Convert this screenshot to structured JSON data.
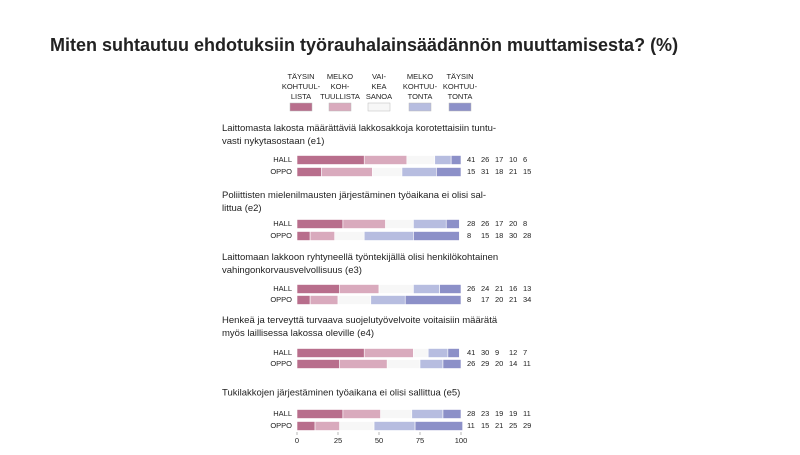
{
  "chart_data": {
    "type": "stacked_bar",
    "title": "Miten suhtautuu ehdotuksiin työrauhalainsäädännön muuttamisesta? (%)",
    "series": [
      {
        "name": "TÄYSIN\nKOHTUUL-\nLISTA",
        "color": "#b86e8c"
      },
      {
        "name": "MELKO\nKOH-\nTUULLISTA",
        "color": "#d9aabd"
      },
      {
        "name": "VAI-\nKEA\nSANOA",
        "color": "#f7f7f7"
      },
      {
        "name": "MELKO\nKOHTUU-\nTONTA",
        "color": "#b7bde0"
      },
      {
        "name": "TÄYSIN\nKOHTUU-\nTONTA",
        "color": "#8c90c8"
      }
    ],
    "groups": [
      {
        "label": "Laittomasta lakosta määrättäviä lakkosakkoja korotettaisiin tuntu-\nvasti nykytasostaan (e1)",
        "rows": [
          {
            "name": "HALL",
            "values": [
              41,
              26,
              17,
              10,
              6
            ]
          },
          {
            "name": "OPPO",
            "values": [
              15,
              31,
              18,
              21,
              15
            ]
          }
        ]
      },
      {
        "label": "Poliittisten mielenilmausten järjestäminen työaikana ei olisi sal-\nlittua (e2)",
        "rows": [
          {
            "name": "HALL",
            "values": [
              28,
              26,
              17,
              20,
              8
            ]
          },
          {
            "name": "OPPO",
            "values": [
              8,
              15,
              18,
              30,
              28
            ]
          }
        ]
      },
      {
        "label": "Laittomaan lakkoon ryhtyneellä työntekijällä olisi henkilökohtainen\nvahingonkorvausvelvollisuus (e3)",
        "rows": [
          {
            "name": "HALL",
            "values": [
              26,
              24,
              21,
              16,
              13
            ]
          },
          {
            "name": "OPPO",
            "values": [
              8,
              17,
              20,
              21,
              34
            ]
          }
        ]
      },
      {
        "label": "Henkeä ja terveyttä turvaava suojelutyövelvoite voitaisiin määrätä\nmyös laillisessa lakossa oleville (e4)",
        "rows": [
          {
            "name": "HALL",
            "values": [
              41,
              30,
              9,
              12,
              7
            ]
          },
          {
            "name": "OPPO",
            "values": [
              26,
              29,
              20,
              14,
              11
            ]
          }
        ]
      },
      {
        "label": "Tukilakkojen järjestäminen työaikana ei olisi sallittua (e5)",
        "rows": [
          {
            "name": "HALL",
            "values": [
              28,
              23,
              19,
              19,
              11
            ]
          },
          {
            "name": "OPPO",
            "values": [
              11,
              15,
              21,
              25,
              29
            ]
          }
        ]
      }
    ],
    "xlim": [
      0,
      100
    ],
    "xticks": [
      0,
      25,
      50,
      75,
      100
    ]
  }
}
